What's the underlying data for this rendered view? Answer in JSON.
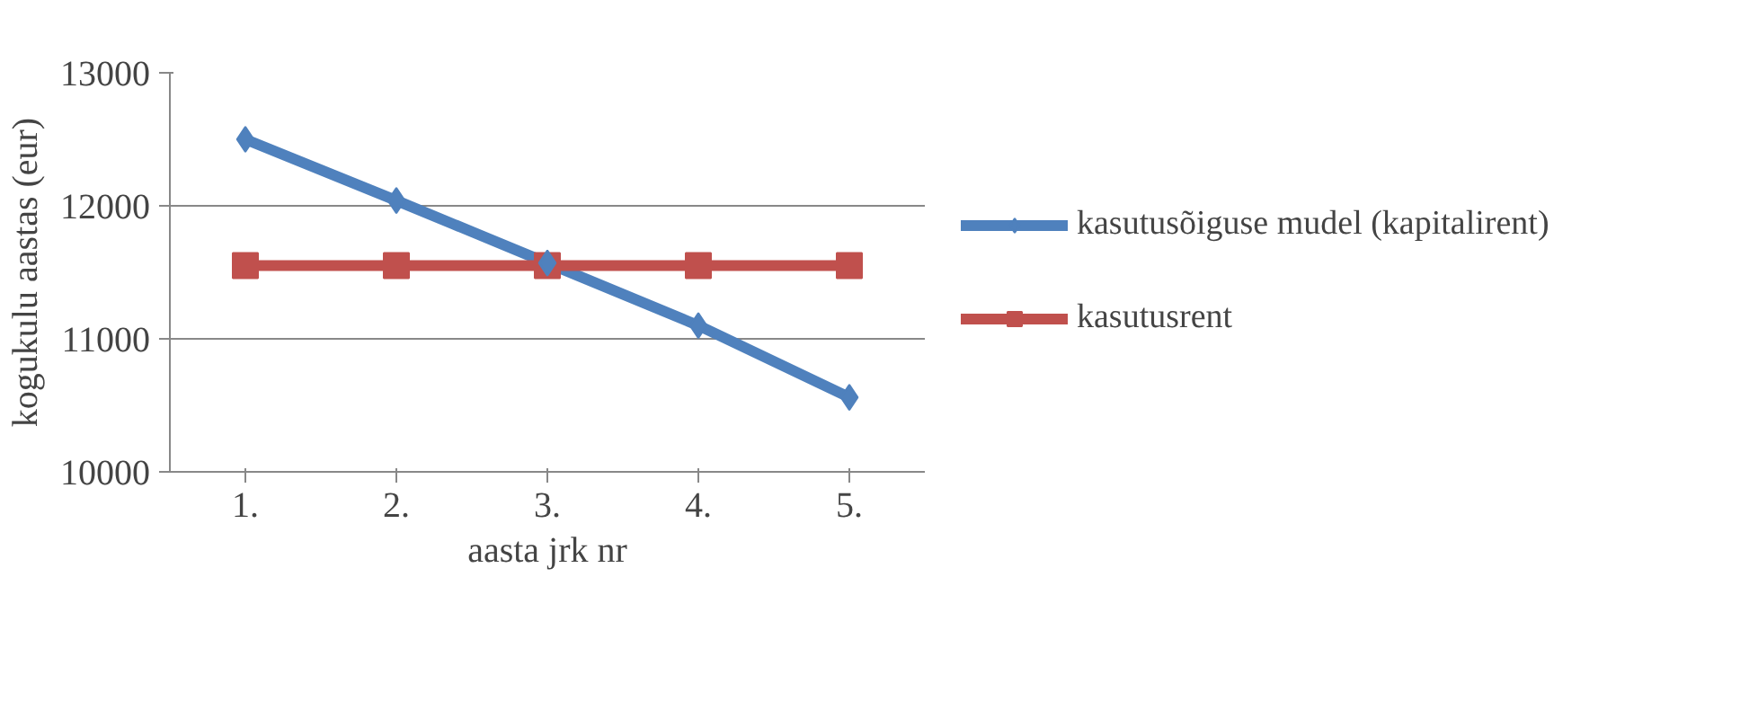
{
  "chart_data": {
    "type": "line",
    "xlabel": "aasta jrk nr",
    "ylabel": "kogukulu aastas (eur)",
    "categories": [
      "1.",
      "2.",
      "3.",
      "4.",
      "5."
    ],
    "series": [
      {
        "name": "kasutusõiguse mudel (kapitalirent)",
        "color": "#4f81bd",
        "values": [
          12500,
          12040,
          11570,
          11100,
          10560
        ],
        "marker": "diamond"
      },
      {
        "name": "kasutusrent",
        "color": "#c0504d",
        "values": [
          11550,
          11550,
          11550,
          11550,
          11550
        ],
        "marker": "square"
      }
    ],
    "ylim": [
      10000,
      13000
    ],
    "yticks": [
      10000,
      11000,
      12000,
      13000
    ],
    "grid": "y",
    "legend": "right"
  }
}
